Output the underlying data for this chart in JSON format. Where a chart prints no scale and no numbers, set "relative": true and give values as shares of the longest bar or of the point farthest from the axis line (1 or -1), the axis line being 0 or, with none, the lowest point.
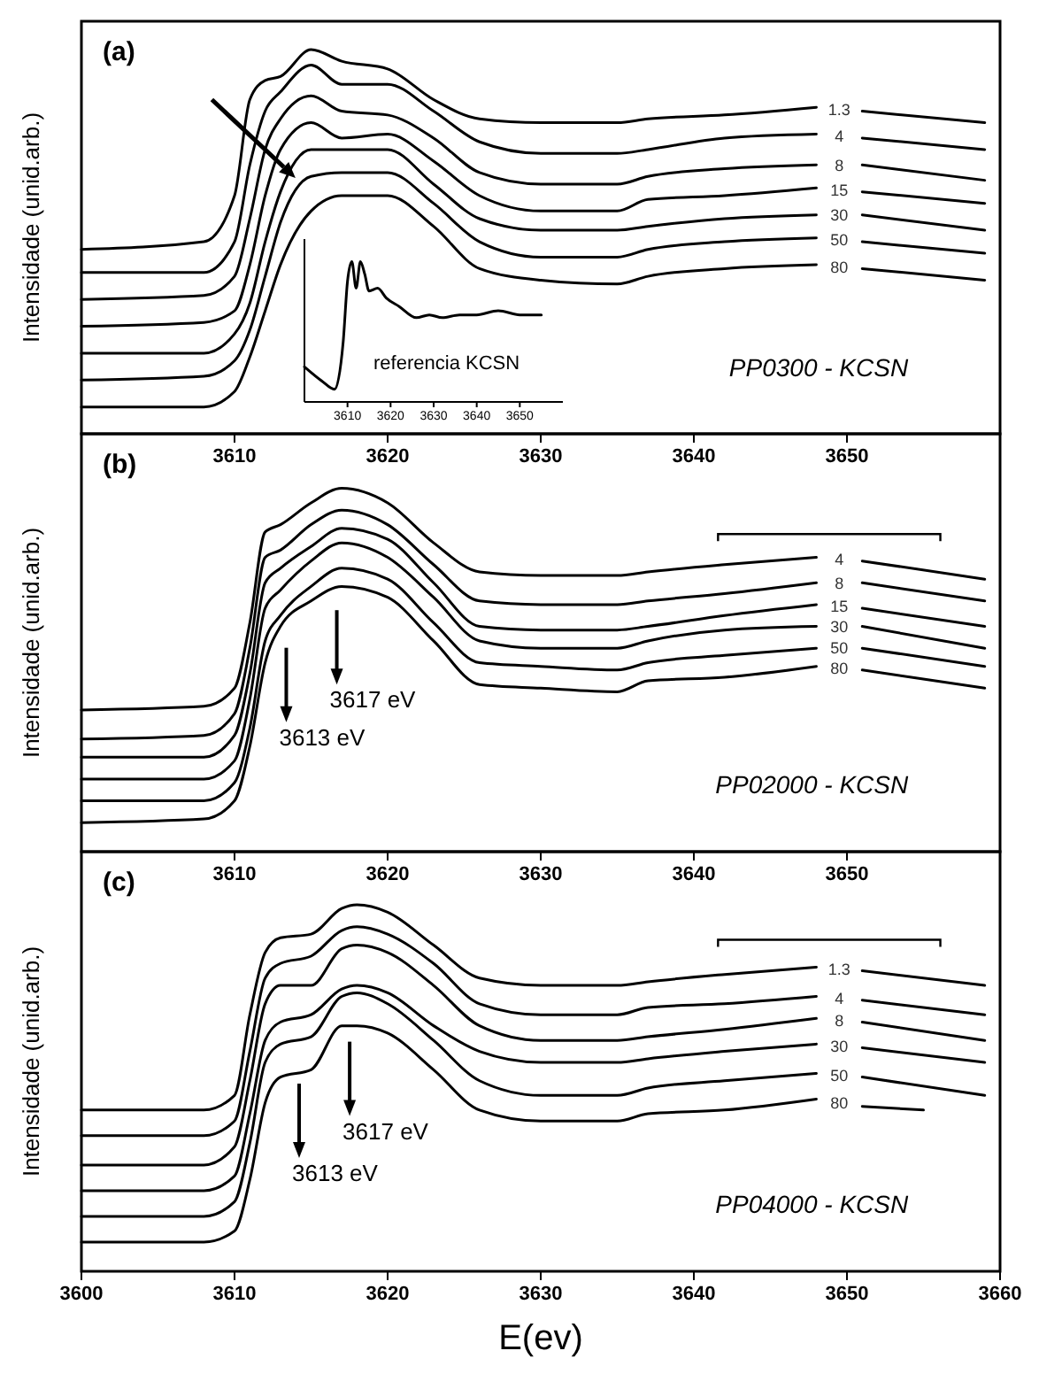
{
  "chart_data": [
    {
      "type": "line",
      "title": "(a)",
      "ylabel": "Intensidade (unid.arb.)",
      "relative": true,
      "xlim": [
        3600,
        3660
      ],
      "xticks": [
        3610,
        3620,
        3630,
        3640,
        3650
      ],
      "annotations": [
        "PP0300 - KCSN"
      ],
      "x": [
        3600,
        3608,
        3610,
        3611,
        3612,
        3613,
        3615,
        3617,
        3620,
        3623,
        3626,
        3630,
        3635,
        3637,
        3642,
        3648,
        3649.5,
        3651,
        3659
      ],
      "series": [
        {
          "name": "1.3",
          "color": "#000000",
          "values": [
            0.48,
            0.5,
            0.62,
            0.87,
            0.92,
            0.93,
            1.0,
            0.97,
            0.95,
            0.87,
            0.82,
            0.81,
            0.81,
            0.82,
            0.83,
            0.85,
            null,
            0.84,
            0.81
          ]
        },
        {
          "name": "4",
          "color": "#000000",
          "values": [
            0.42,
            0.42,
            0.5,
            0.7,
            0.84,
            0.89,
            0.96,
            0.91,
            0.91,
            0.84,
            0.76,
            0.73,
            0.73,
            0.74,
            0.77,
            0.78,
            null,
            0.77,
            0.74
          ]
        },
        {
          "name": "8",
          "color": "#000000",
          "values": [
            0.35,
            0.36,
            0.41,
            0.56,
            0.74,
            0.82,
            0.88,
            0.84,
            0.83,
            0.77,
            0.68,
            0.65,
            0.65,
            0.67,
            0.69,
            0.7,
            null,
            0.7,
            0.66
          ]
        },
        {
          "name": "15",
          "color": "#000000",
          "values": [
            0.28,
            0.29,
            0.32,
            0.44,
            0.62,
            0.74,
            0.81,
            0.77,
            0.78,
            0.71,
            0.62,
            0.58,
            0.58,
            0.61,
            0.62,
            0.64,
            null,
            0.63,
            0.6
          ]
        },
        {
          "name": "30",
          "color": "#000000",
          "values": [
            0.21,
            0.21,
            0.26,
            0.34,
            0.5,
            0.63,
            0.74,
            0.74,
            0.74,
            0.65,
            0.56,
            0.53,
            0.53,
            0.54,
            0.56,
            0.57,
            null,
            0.57,
            0.53
          ]
        },
        {
          "name": "50",
          "color": "#000000",
          "values": [
            0.14,
            0.15,
            0.19,
            0.27,
            0.41,
            0.55,
            0.67,
            0.68,
            0.68,
            0.6,
            0.5,
            0.46,
            0.46,
            0.48,
            0.5,
            0.51,
            null,
            0.5,
            0.47
          ]
        },
        {
          "name": "80",
          "color": "#000000",
          "values": [
            0.07,
            0.07,
            0.11,
            0.2,
            0.32,
            0.44,
            0.58,
            0.62,
            0.62,
            0.54,
            0.43,
            0.4,
            0.39,
            0.41,
            0.43,
            0.44,
            null,
            0.43,
            0.4
          ]
        }
      ]
    },
    {
      "type": "line",
      "relative": true,
      "xlim": [
        3600,
        3660
      ],
      "xticks": [
        3610,
        3620,
        3630,
        3640,
        3650
      ],
      "annotations": [
        "referencia KCSN"
      ],
      "x": [
        3600,
        3604,
        3607,
        3609,
        3610,
        3611,
        3612,
        3613,
        3614,
        3615,
        3617,
        3619,
        3622,
        3626,
        3629,
        3632,
        3636,
        3640,
        3645,
        3650,
        3655
      ],
      "series": [
        {
          "color": "#000000",
          "values": [
            0.25,
            0.15,
            0.09,
            0.43,
            0.86,
            1.0,
            0.81,
            1.0,
            0.91,
            0.79,
            0.81,
            0.74,
            0.68,
            0.6,
            0.62,
            0.6,
            0.62,
            0.62,
            0.65,
            0.62,
            0.62
          ]
        }
      ]
    },
    {
      "type": "line",
      "title": "(b)",
      "ylabel": "Intensidade (unid.arb.)",
      "relative": true,
      "xlim": [
        3600,
        3660
      ],
      "xticks": [
        3610,
        3620,
        3630,
        3640,
        3650
      ],
      "annotations": [
        "3617 eV",
        "3613 eV",
        "PP02000 - KCSN"
      ],
      "x": [
        3600,
        3608,
        3610,
        3611,
        3612,
        3613,
        3615,
        3617,
        3620,
        3623,
        3626,
        3630,
        3635,
        3637,
        3642,
        3648,
        3649.5,
        3651,
        3659
      ],
      "series": [
        {
          "name": "4",
          "color": "#000000",
          "values": [
            0.39,
            0.4,
            0.45,
            0.63,
            0.88,
            0.9,
            0.96,
            1.0,
            0.96,
            0.85,
            0.77,
            0.76,
            0.76,
            0.77,
            0.79,
            0.81,
            null,
            0.8,
            0.75
          ]
        },
        {
          "name": "8",
          "color": "#000000",
          "values": [
            0.31,
            0.32,
            0.38,
            0.56,
            0.81,
            0.83,
            0.9,
            0.94,
            0.9,
            0.79,
            0.69,
            0.68,
            0.68,
            0.69,
            0.71,
            0.74,
            null,
            0.74,
            0.69
          ]
        },
        {
          "name": "15",
          "color": "#000000",
          "values": [
            0.26,
            0.26,
            0.32,
            0.49,
            0.74,
            0.78,
            0.84,
            0.89,
            0.86,
            0.74,
            0.62,
            0.61,
            0.61,
            0.62,
            0.65,
            0.68,
            null,
            0.67,
            0.62
          ]
        },
        {
          "name": "30",
          "color": "#000000",
          "values": [
            0.2,
            0.2,
            0.25,
            0.42,
            0.67,
            0.72,
            0.8,
            0.85,
            0.81,
            0.7,
            0.58,
            0.56,
            0.56,
            0.58,
            0.61,
            0.62,
            null,
            0.62,
            0.56
          ]
        },
        {
          "name": "50",
          "color": "#000000",
          "values": [
            0.14,
            0.14,
            0.19,
            0.34,
            0.58,
            0.65,
            0.73,
            0.78,
            0.75,
            0.63,
            0.52,
            0.51,
            0.5,
            0.52,
            0.54,
            0.56,
            null,
            0.56,
            0.51
          ]
        },
        {
          "name": "80",
          "color": "#000000",
          "values": [
            0.08,
            0.09,
            0.14,
            0.29,
            0.52,
            0.62,
            0.69,
            0.73,
            0.7,
            0.58,
            0.46,
            0.45,
            0.44,
            0.47,
            0.48,
            0.51,
            null,
            0.5,
            0.45
          ]
        }
      ]
    },
    {
      "type": "line",
      "title": "(c)",
      "xlabel": "E(ev)",
      "ylabel": "Intensidade (unid.arb.)",
      "relative": true,
      "xlim": [
        3600,
        3660
      ],
      "xticks": [
        3600,
        3610,
        3620,
        3630,
        3640,
        3650,
        3660
      ],
      "annotations": [
        "3617 eV",
        "3613 eV",
        "PP04000 - KCSN"
      ],
      "x": [
        3600,
        3608,
        3610,
        3611,
        3612,
        3613,
        3615,
        3617,
        3618,
        3620,
        3623,
        3626,
        3630,
        3635,
        3637,
        3642,
        3648,
        3649.5,
        3651,
        3659
      ],
      "series": [
        {
          "name": "1.3",
          "color": "#000000",
          "values": [
            0.44,
            0.44,
            0.48,
            0.7,
            0.87,
            0.91,
            0.92,
            0.99,
            1.0,
            0.98,
            0.89,
            0.8,
            0.78,
            0.78,
            0.79,
            0.81,
            0.83,
            null,
            0.82,
            0.78
          ]
        },
        {
          "name": "4",
          "color": "#000000",
          "values": [
            0.37,
            0.37,
            0.41,
            0.6,
            0.8,
            0.84,
            0.86,
            0.93,
            0.94,
            0.92,
            0.84,
            0.73,
            0.7,
            0.7,
            0.72,
            0.73,
            0.75,
            null,
            0.74,
            0.7
          ]
        },
        {
          "name": "8",
          "color": "#000000",
          "values": [
            0.29,
            0.29,
            0.34,
            0.52,
            0.73,
            0.78,
            0.78,
            0.88,
            0.89,
            0.87,
            0.78,
            0.67,
            0.63,
            0.63,
            0.64,
            0.66,
            0.69,
            null,
            0.68,
            0.63
          ]
        },
        {
          "name": "30",
          "color": "#000000",
          "values": [
            0.22,
            0.22,
            0.26,
            0.43,
            0.63,
            0.68,
            0.7,
            0.77,
            0.78,
            0.76,
            0.67,
            0.6,
            0.57,
            0.57,
            0.58,
            0.6,
            0.62,
            null,
            0.61,
            0.57
          ]
        },
        {
          "name": "50",
          "color": "#000000",
          "values": [
            0.15,
            0.15,
            0.19,
            0.35,
            0.57,
            0.62,
            0.64,
            0.75,
            0.76,
            0.73,
            0.63,
            0.52,
            0.48,
            0.48,
            0.5,
            0.52,
            0.54,
            null,
            0.53,
            0.48
          ]
        },
        {
          "name": "80",
          "color": "#000000",
          "x": [
            3600,
            3608,
            3610,
            3611,
            3612,
            3613,
            3615,
            3617,
            3618,
            3620,
            3623,
            3626,
            3630,
            3635,
            3637,
            3642,
            3648,
            3649.5,
            3651,
            3655
          ],
          "values": [
            0.08,
            0.08,
            0.11,
            0.25,
            0.46,
            0.53,
            0.55,
            0.67,
            0.67,
            0.65,
            0.55,
            0.44,
            0.41,
            0.41,
            0.43,
            0.44,
            0.47,
            null,
            0.45,
            0.44
          ]
        }
      ]
    }
  ]
}
